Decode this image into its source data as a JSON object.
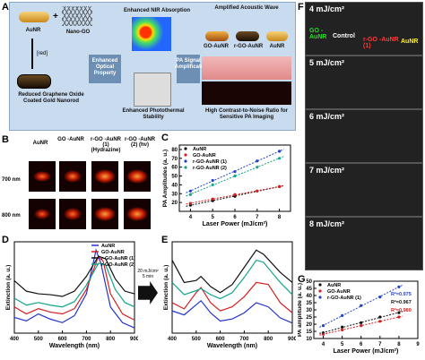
{
  "panel_labels": {
    "a": "A",
    "b": "B",
    "c": "C",
    "d": "D",
    "e": "E",
    "f": "F",
    "g": "G"
  },
  "panelA": {
    "aunr": "AuNR",
    "nanogo": "Nano-GO",
    "red": "[red]",
    "rgo_caption": "Reduced Graphene Oxide Coated Gold Nanorod",
    "enhanced_optical": "Enhanced Optical Property",
    "enhanced_nir": "Enhanced NIR Absorption",
    "enhanced_photothermal": "Enhanced Photothermal Stability",
    "pa_signal": "PA Signal Amplification",
    "amplified_wave": "Amplified Acoustic Wave",
    "go_aunr": "GO-AuNR",
    "rgo_aunr": "r-GO-AuNR",
    "aunr2": "AuNR",
    "high_contrast": "High Contrast-to-Noise Ratio for Sensitive PA Imaging"
  },
  "panelB": {
    "columns": [
      "AuNR",
      "GO -AuNR",
      "r-GO -AuNR (1) (Hydrazine)",
      "r-GO -AuNR (2) (hν)"
    ],
    "rows": [
      "700 nm",
      "800 nm"
    ]
  },
  "chart_data": [
    {
      "id": "C",
      "type": "scatter",
      "xlabel": "Laser Power (mJ/cm²)",
      "ylabel": "PA Amplitudes (a. u.)",
      "xlim": [
        3.5,
        8.5
      ],
      "ylim": [
        10,
        85
      ],
      "xticks": [
        4,
        5,
        6,
        7,
        8
      ],
      "yticks": [
        20,
        30,
        40,
        50,
        60,
        70,
        80
      ],
      "grid": false,
      "legend": "top-left",
      "series": [
        {
          "name": "AuNR",
          "color": "#111111",
          "x": [
            4,
            5,
            6,
            7,
            8
          ],
          "y": [
            17,
            22,
            27,
            33,
            38
          ]
        },
        {
          "name": "GO-AuNR",
          "color": "#d62020",
          "x": [
            4,
            5,
            6,
            7,
            8
          ],
          "y": [
            19,
            24,
            29,
            33,
            38
          ]
        },
        {
          "name": "r-GO-AuNR (1)",
          "color": "#2244cc",
          "x": [
            4,
            5,
            6,
            7,
            8
          ],
          "y": [
            33,
            45,
            55,
            67,
            78
          ]
        },
        {
          "name": "r-GO-AuNR (2)",
          "color": "#11a58a",
          "x": [
            4,
            5,
            6,
            7,
            8
          ],
          "y": [
            29,
            40,
            50,
            60,
            70
          ]
        }
      ]
    },
    {
      "id": "D",
      "type": "line",
      "xlabel": "Wavelength (nm)",
      "ylabel": "Extinction (a. u.)",
      "xlim": [
        400,
        900
      ],
      "xticks": [
        400,
        500,
        600,
        700,
        800,
        900
      ],
      "legend": "top-right",
      "series": [
        {
          "name": "AuNR",
          "color": "#2233cc",
          "x": [
            400,
            450,
            500,
            550,
            600,
            650,
            700,
            740,
            760,
            800,
            850,
            900
          ],
          "y": [
            0.18,
            0.14,
            0.22,
            0.16,
            0.12,
            0.2,
            0.45,
            0.95,
            0.8,
            0.3,
            0.12,
            0.06
          ]
        },
        {
          "name": "GO-AuNR",
          "color": "#d62020",
          "x": [
            400,
            450,
            500,
            550,
            600,
            650,
            700,
            750,
            770,
            800,
            850,
            900
          ],
          "y": [
            0.3,
            0.22,
            0.28,
            0.24,
            0.22,
            0.28,
            0.5,
            0.88,
            0.82,
            0.45,
            0.22,
            0.15
          ]
        },
        {
          "name": "r-GO-AuNR (1)",
          "color": "#111111",
          "x": [
            400,
            450,
            500,
            550,
            600,
            650,
            700,
            750,
            780,
            820,
            860,
            900
          ],
          "y": [
            0.6,
            0.48,
            0.45,
            0.44,
            0.42,
            0.48,
            0.65,
            0.88,
            0.85,
            0.62,
            0.48,
            0.45
          ]
        },
        {
          "name": "r-GO-AuNR (2)",
          "color": "#11a58a",
          "x": [
            400,
            450,
            500,
            550,
            600,
            650,
            700,
            750,
            780,
            820,
            860,
            900
          ],
          "y": [
            0.4,
            0.32,
            0.35,
            0.32,
            0.3,
            0.36,
            0.55,
            0.8,
            0.78,
            0.5,
            0.35,
            0.3
          ]
        }
      ]
    },
    {
      "id": "E",
      "type": "line",
      "xlabel": "Wavelength (nm)",
      "ylabel": "Extinction (a. u.)",
      "xlim": [
        400,
        900
      ],
      "xticks": [
        400,
        500,
        600,
        700,
        800,
        900
      ],
      "series": [
        {
          "name": "AuNR",
          "color": "#2233cc",
          "x": [
            400,
            450,
            500,
            520,
            560,
            600,
            650,
            700,
            750,
            800,
            850,
            900
          ],
          "y": [
            0.22,
            0.18,
            0.28,
            0.32,
            0.2,
            0.12,
            0.14,
            0.2,
            0.3,
            0.26,
            0.15,
            0.1
          ]
        },
        {
          "name": "GO-AuNR",
          "color": "#d62020",
          "x": [
            400,
            450,
            500,
            520,
            560,
            600,
            650,
            700,
            750,
            800,
            850,
            900
          ],
          "y": [
            0.3,
            0.24,
            0.4,
            0.45,
            0.3,
            0.22,
            0.26,
            0.36,
            0.5,
            0.48,
            0.3,
            0.2
          ]
        },
        {
          "name": "r-GO-AuNR (1)",
          "color": "#111111",
          "x": [
            400,
            450,
            500,
            520,
            560,
            600,
            650,
            700,
            750,
            780,
            850,
            900
          ],
          "y": [
            0.72,
            0.5,
            0.52,
            0.56,
            0.46,
            0.4,
            0.48,
            0.65,
            0.82,
            0.78,
            0.6,
            0.5
          ]
        },
        {
          "name": "r-GO-AuNR (2)",
          "color": "#11a58a",
          "x": [
            400,
            450,
            500,
            520,
            560,
            600,
            650,
            700,
            750,
            780,
            850,
            900
          ],
          "y": [
            0.5,
            0.38,
            0.42,
            0.44,
            0.38,
            0.34,
            0.4,
            0.55,
            0.72,
            0.7,
            0.5,
            0.38
          ]
        }
      ]
    },
    {
      "id": "G",
      "type": "scatter",
      "xlabel": "Laser Power (mJ/cm²)",
      "ylabel": "PA amplitude (a. u.)",
      "xlim": [
        3.5,
        9
      ],
      "ylim": [
        10,
        50
      ],
      "xticks": [
        4,
        5,
        6,
        7,
        8,
        9
      ],
      "yticks": [
        10,
        15,
        20,
        25,
        30,
        35,
        40,
        45,
        50
      ],
      "legend": "top-left",
      "series": [
        {
          "name": "AuNR",
          "color": "#111111",
          "x": [
            4,
            5,
            6,
            7,
            8
          ],
          "y": [
            14,
            18,
            21,
            25,
            28
          ]
        },
        {
          "name": "GO-AuNR",
          "color": "#d62020",
          "x": [
            4,
            5,
            6,
            7,
            8
          ],
          "y": [
            13,
            16,
            19,
            22,
            25
          ]
        },
        {
          "name": "r-GO-AuNR (1)",
          "color": "#2244cc",
          "x": [
            4,
            5,
            6,
            7,
            8
          ],
          "y": [
            19,
            26,
            33,
            39,
            46
          ]
        }
      ],
      "annotations": [
        "R²=0.975",
        "R²=0.967",
        "R²=0.980"
      ]
    }
  ],
  "panelD_arrow": "20 mJ/cm² 5 min",
  "panelF": {
    "rows": [
      "4 mJ/cm²",
      "5 mJ/cm²",
      "6 mJ/cm²",
      "7 mJ/cm²",
      "8 mJ/cm²"
    ],
    "control": "Control",
    "go": "GO -AuNR",
    "rgo": "r-GO -AuNR (1)",
    "au": "AuNR"
  }
}
